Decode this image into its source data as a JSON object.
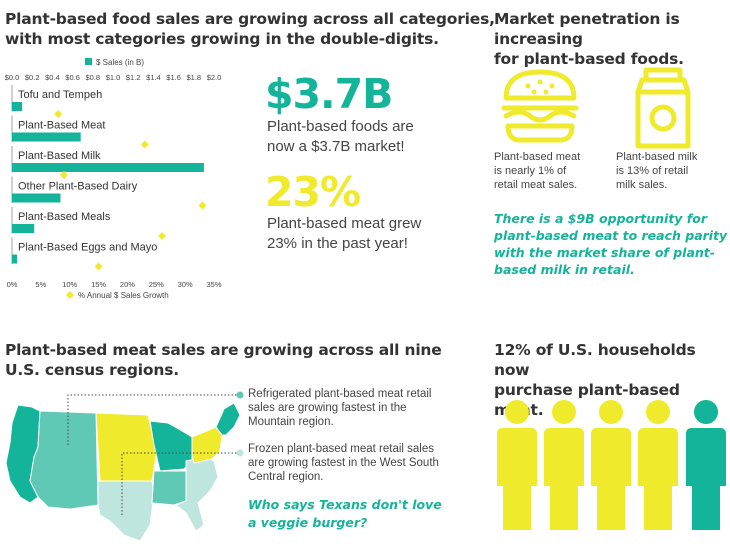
{
  "colors": {
    "teal": "#14b49a",
    "yellow": "#f0ea2c",
    "text": "#333333",
    "lightTeal": "#5fc9b6",
    "paleTeal": "#bfe6de"
  },
  "sales_section": {
    "title_line1": "Plant-based food sales are growing across all categories,",
    "title_line2": "with most categories growing in the double-digits."
  },
  "chart_data": {
    "type": "bar",
    "title": "Plant-based food sales are growing across all categories, with most categories growing in the double-digits.",
    "categories": [
      "Tofu and Tempeh",
      "Plant-Based Meat",
      "Plant-Based Milk",
      "Other Plant-Based Dairy",
      "Plant-Based Meals",
      "Plant-Based Eggs and Mayo"
    ],
    "series": [
      {
        "name": "$ Sales (in B)",
        "marker": "bar",
        "axis": "top",
        "values": [
          0.1,
          0.68,
          1.9,
          0.48,
          0.22,
          0.05
        ]
      },
      {
        "name": "% Annual $ Sales Growth",
        "marker": "diamond",
        "axis": "bottom",
        "values": [
          8,
          23,
          9,
          33,
          26,
          15
        ]
      }
    ],
    "top_axis": {
      "ticks": [
        "$0.0",
        "$0.2",
        "$0.4",
        "$0.6",
        "$0.8",
        "$1.0",
        "$1.2",
        "$1.4",
        "$1.6",
        "$1.8",
        "$2.0"
      ],
      "range": [
        0,
        2.0
      ]
    },
    "bottom_axis": {
      "ticks": [
        "0%",
        "5%",
        "10%",
        "15%",
        "20%",
        "25%",
        "30%",
        "35%"
      ],
      "range": [
        0,
        35
      ]
    }
  },
  "stats": {
    "stat1_value": "$3.7B",
    "stat1_line1": "Plant-based foods are",
    "stat1_line2": "now a $3.7B market!",
    "stat2_value": "23%",
    "stat2_line1": "Plant-based meat grew",
    "stat2_line2": "23% in the past year!"
  },
  "market": {
    "title_line1": "Market penetration is increasing",
    "title_line2": "for plant-based foods.",
    "meat_icon": "burger-icon",
    "milk_icon": "milk-carton-icon",
    "meat_line1": "Plant-based meat",
    "meat_line2": "is nearly 1% of",
    "meat_line3": "retail meat sales.",
    "milk_line1": "Plant-based milk",
    "milk_line2": "is 13% of retail",
    "milk_line3": "milk sales.",
    "callout_line1": "There is a $9B opportunity for",
    "callout_line2": "plant-based meat to reach parity",
    "callout_line3": "with the market share of plant-",
    "callout_line4": "based milk in retail."
  },
  "regions": {
    "title_line1": "Plant-based meat sales are growing across all nine",
    "title_line2": "U.S. census regions.",
    "map_icon": "us-census-regions-map",
    "note1_line1": "Refrigerated plant-based meat retail",
    "note1_line2": "sales are growing fastest in the",
    "note1_line3": "Mountain region.",
    "note2_line1": "Frozen plant-based meat retail sales",
    "note2_line2": "are growing fastest in the West South",
    "note2_line3": "Central region.",
    "callout_line1": "Who says Texans don't love",
    "callout_line2": "a veggie burger?"
  },
  "households": {
    "title_line1": "12% of U.S. households now",
    "title_line2": "purchase plant-based meat.",
    "person_icon": "person-icon"
  }
}
